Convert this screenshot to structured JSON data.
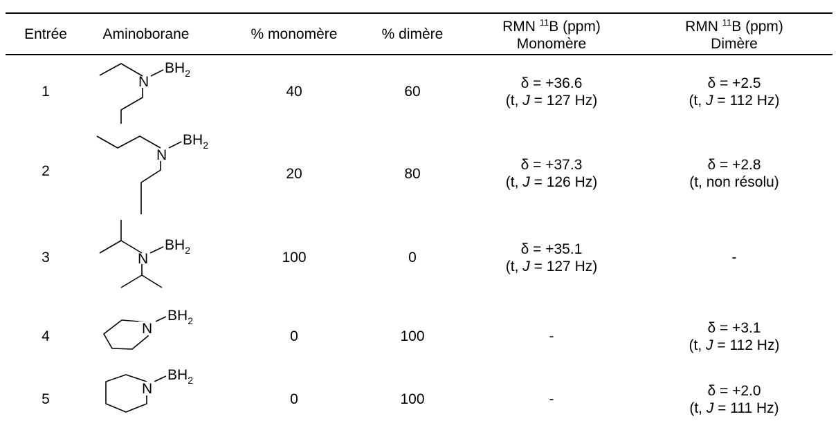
{
  "table": {
    "headers": {
      "entry": "Entrée",
      "aminoborane": "Aminoborane",
      "monomer_pct": "% monomère",
      "dimer_pct": "% dimère",
      "nmr_monomer_prefix": "RMN ",
      "nmr_isotope": "11",
      "nmr_monomer_suffix": "B (ppm)",
      "nmr_monomer_line2": "Monomère",
      "nmr_dimer_prefix": "RMN ",
      "nmr_dimer_suffix": "B (ppm)",
      "nmr_dimer_line2": "Dimère"
    },
    "atom_labels": {
      "nitrogen": "N",
      "boron": "BH",
      "boron_subscript": "2"
    },
    "rows": [
      {
        "entry": "1",
        "monomer": "40",
        "dimer": "60",
        "nmr_mono": {
          "shift": "δ = +36.6",
          "mult_pre": "(t, ",
          "j": "J",
          "mult_post": " = 127 Hz)"
        },
        "nmr_dim": {
          "shift": "δ = +2.5",
          "mult_pre": "(t, ",
          "j": "J",
          "mult_post": " = 112 Hz)"
        }
      },
      {
        "entry": "2",
        "monomer": "20",
        "dimer": "80",
        "nmr_mono": {
          "shift": "δ = +37.3",
          "mult_pre": "(t, ",
          "j": "J",
          "mult_post": " = 126 Hz)"
        },
        "nmr_dim": {
          "shift": "δ = +2.8",
          "mult_plain": "(t, non résolu)"
        }
      },
      {
        "entry": "3",
        "monomer": "100",
        "dimer": "0",
        "nmr_mono": {
          "shift": "δ = +35.1",
          "mult_pre": "(t, ",
          "j": "J",
          "mult_post": " = 127 Hz)"
        },
        "nmr_dim": {
          "dash": "-"
        }
      },
      {
        "entry": "4",
        "monomer": "0",
        "dimer": "100",
        "nmr_mono": {
          "dash": "-"
        },
        "nmr_dim": {
          "shift": "δ = +3.1",
          "mult_pre": "(t, ",
          "j": "J",
          "mult_post": " = 112 Hz)"
        }
      },
      {
        "entry": "5",
        "monomer": "0",
        "dimer": "100",
        "nmr_mono": {
          "dash": "-"
        },
        "nmr_dim": {
          "shift": "δ = +2.0",
          "mult_pre": "(t, ",
          "j": "J",
          "mult_post": " = 111 Hz)"
        }
      }
    ]
  }
}
